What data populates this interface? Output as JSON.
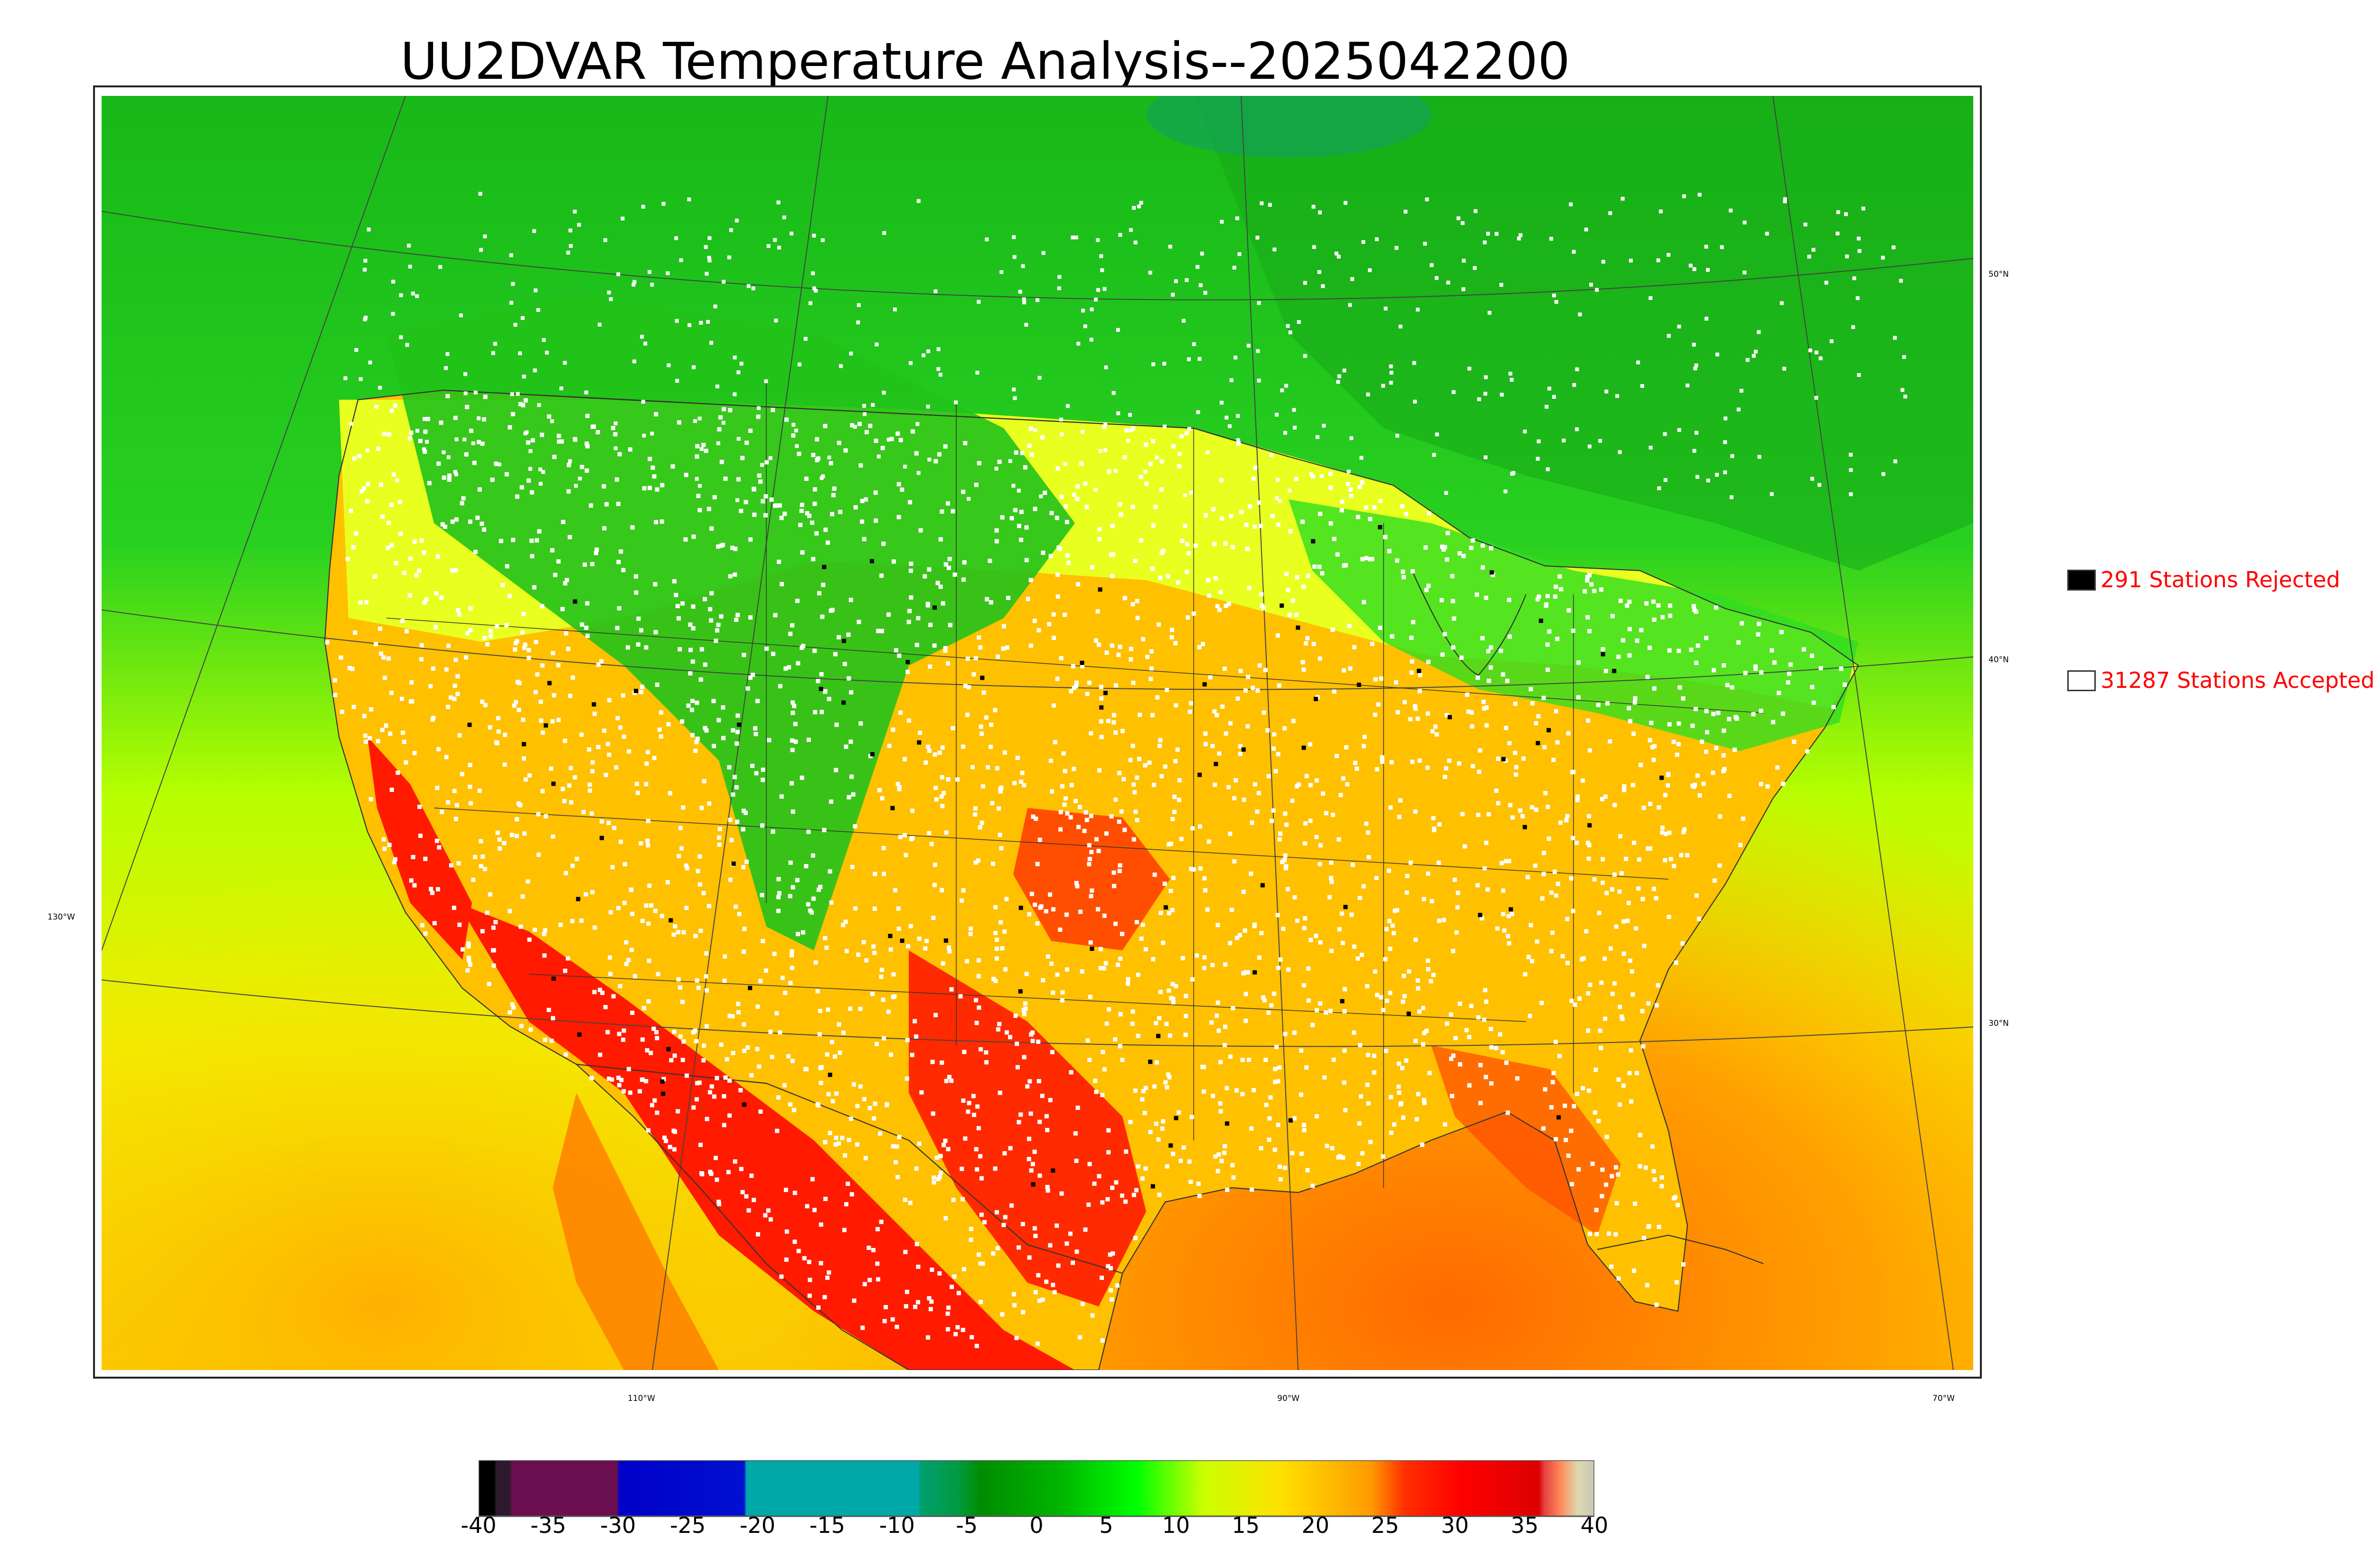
{
  "title": "UU2DVAR Temperature Analysis--2025042200",
  "legend": {
    "rejected": {
      "label": "291 Stations Rejected",
      "color": "#000000"
    },
    "accepted": {
      "label": "31287 Stations Accepted",
      "color": "#ffffff"
    }
  },
  "latitude_labels": [
    "50°N",
    "40°N",
    "30°N"
  ],
  "longitude_labels": [
    "130°W",
    "110°W",
    "90°W",
    "70°W"
  ],
  "colorbar": {
    "min": -40,
    "max": 40,
    "ticks": [
      "-40",
      "-35",
      "-30",
      "-25",
      "-20",
      "-15",
      "-10",
      "-5",
      "0",
      "5",
      "10",
      "15",
      "20",
      "25",
      "30",
      "35",
      "40"
    ],
    "colors": {
      "c_m40": "#000000",
      "c_m38": "#2d1a2d",
      "c_m35": "#6b0f50",
      "c_m30": "#0000c8",
      "c_m25": "#0010d0",
      "c_m20": "#00a8a8",
      "c_m10": "#00a070",
      "c_m5": "#008c00",
      "c_0": "#00b400",
      "c_7": "#00ff00",
      "c_12": "#ccff00",
      "c_18": "#ffe000",
      "c_25": "#ff9a00",
      "c_30": "#ff0000",
      "c_35": "#dc0000",
      "c_37": "#ff8c5a",
      "c_39": "#ddd8b0",
      "c_40": "#c8c8b4"
    }
  },
  "map_colors": {
    "land_north": "#22c21a",
    "canada_dark": "#18a818",
    "ocean_cool": "#c8ff00",
    "ocean_warm": "#ff9a00",
    "hot": "#ff1a00",
    "warm": "#ffc000",
    "mild": "#e8ff20",
    "station_accepted": "#ffffff",
    "station_rejected": "#000000"
  }
}
